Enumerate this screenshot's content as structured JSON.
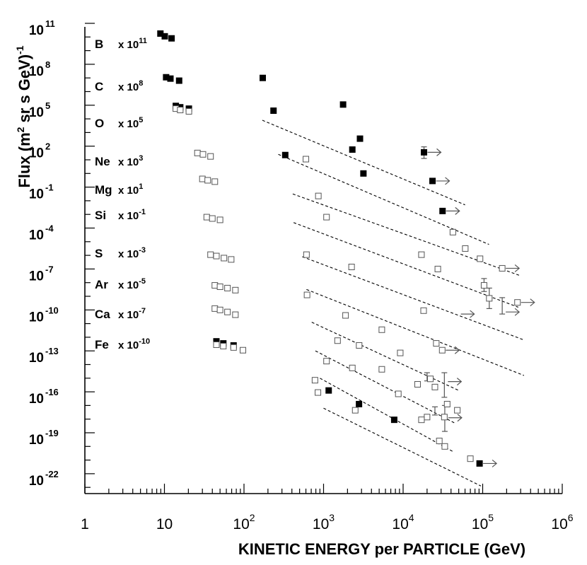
{
  "chart_data": {
    "type": "scatter",
    "title": "",
    "xlabel": "KINETIC ENERGY per PARTICLE (GeV)",
    "ylabel": {
      "base": "Flux (m",
      "sup1": "2",
      "mid": " sr s GeV)",
      "sup2": "-1"
    },
    "x_scale": "log",
    "y_scale": "log",
    "xlim": [
      1,
      1000000
    ],
    "ylim_exponent": [
      -23,
      11
    ],
    "x_ticks": [
      {
        "base": "1",
        "exp": ""
      },
      {
        "base": "10",
        "exp": ""
      },
      {
        "base": "10",
        "exp": "2"
      },
      {
        "base": "10",
        "exp": "3"
      },
      {
        "base": "10",
        "exp": "4"
      },
      {
        "base": "10",
        "exp": "5"
      },
      {
        "base": "10",
        "exp": "6"
      }
    ],
    "y_ticks": [
      {
        "base": "10",
        "exp": "11"
      },
      {
        "base": "10",
        "exp": "8"
      },
      {
        "base": "10",
        "exp": "5"
      },
      {
        "base": "10",
        "exp": "2"
      },
      {
        "base": "10",
        "exp": "-1"
      },
      {
        "base": "10",
        "exp": "-4"
      },
      {
        "base": "10",
        "exp": "-7"
      },
      {
        "base": "10",
        "exp": "-10"
      },
      {
        "base": "10",
        "exp": "-13"
      },
      {
        "base": "10",
        "exp": "-16"
      },
      {
        "base": "10",
        "exp": "-19"
      },
      {
        "base": "10",
        "exp": "-22"
      }
    ],
    "legend_labels": [
      {
        "name": "B",
        "scale": "x 10",
        "exp": "11"
      },
      {
        "name": "C",
        "scale": "x 10",
        "exp": "8"
      },
      {
        "name": "O",
        "scale": "x 10",
        "exp": "5"
      },
      {
        "name": "Ne",
        "scale": "x 10",
        "exp": "3"
      },
      {
        "name": "Mg",
        "scale": "x 10",
        "exp": "1"
      },
      {
        "name": "Si",
        "scale": "x 10",
        "exp": "-1"
      },
      {
        "name": "S",
        "scale": "x 10",
        "exp": "-3"
      },
      {
        "name": "Ar",
        "scale": "x 10",
        "exp": "-5"
      },
      {
        "name": "Ca",
        "scale": "x 10",
        "exp": "-7"
      },
      {
        "name": "Fe",
        "scale": "x 10",
        "exp": "-10"
      }
    ],
    "series": [
      {
        "name": "filled markers",
        "marker": "filled-square",
        "points": [
          [
            8.9,
            10.25
          ],
          [
            10.1,
            10.05
          ],
          [
            12.3,
            9.9
          ],
          [
            10.5,
            7.05
          ],
          [
            11.9,
            6.95
          ],
          [
            15.3,
            6.8
          ],
          [
            13.9,
            4.95
          ],
          [
            15.8,
            4.85
          ],
          [
            20.3,
            4.75
          ],
          [
            172,
            7.0
          ],
          [
            235,
            4.6
          ],
          [
            1760,
            5.05
          ],
          [
            2870,
            2.55
          ],
          [
            3170,
            0.0
          ],
          [
            18300,
            1.55
          ],
          [
            23400,
            -0.55
          ],
          [
            31300,
            -2.75
          ],
          [
            45,
            -12.3
          ],
          [
            55,
            -12.45
          ],
          [
            74,
            -12.6
          ],
          [
            1160,
            -15.9
          ],
          [
            2790,
            -16.9
          ],
          [
            7730,
            -18.05
          ],
          [
            91400,
            -21.25
          ],
          [
            330,
            1.35
          ],
          [
            2300,
            1.75
          ]
        ]
      },
      {
        "name": "open markers",
        "marker": "open-square",
        "points": [
          [
            13.9,
            4.75
          ],
          [
            15.8,
            4.65
          ],
          [
            20.3,
            4.55
          ],
          [
            26,
            1.5
          ],
          [
            30.5,
            1.4
          ],
          [
            38,
            1.25
          ],
          [
            30,
            -0.4
          ],
          [
            35,
            -0.5
          ],
          [
            43,
            -0.6
          ],
          [
            34,
            -3.2
          ],
          [
            40,
            -3.3
          ],
          [
            50,
            -3.4
          ],
          [
            38,
            -5.95
          ],
          [
            45,
            -6.05
          ],
          [
            56,
            -6.2
          ],
          [
            69,
            -6.3
          ],
          [
            43,
            -8.2
          ],
          [
            50,
            -8.3
          ],
          [
            62,
            -8.4
          ],
          [
            78,
            -8.55
          ],
          [
            43,
            -9.9
          ],
          [
            50,
            -10.0
          ],
          [
            62,
            -10.15
          ],
          [
            78,
            -10.35
          ],
          [
            45,
            -12.55
          ],
          [
            55,
            -12.65
          ],
          [
            74,
            -12.75
          ],
          [
            97,
            -12.95
          ],
          [
            600,
            1.05
          ],
          [
            860,
            -1.65
          ],
          [
            1090,
            -3.2
          ],
          [
            610,
            -5.95
          ],
          [
            2250,
            -6.85
          ],
          [
            17000,
            -5.95
          ],
          [
            27300,
            -7.0
          ],
          [
            42200,
            -4.3
          ],
          [
            60400,
            -5.5
          ],
          [
            92600,
            -6.25
          ],
          [
            104000,
            -8.2
          ],
          [
            121000,
            -9.15
          ],
          [
            176000,
            -6.95
          ],
          [
            274000,
            -9.45
          ],
          [
            620,
            -8.9
          ],
          [
            1890,
            -10.4
          ],
          [
            5400,
            -11.45
          ],
          [
            18100,
            -10.05
          ],
          [
            26100,
            -12.45
          ],
          [
            31000,
            -12.95
          ],
          [
            1500,
            -12.25
          ],
          [
            2800,
            -12.6
          ],
          [
            9200,
            -13.15
          ],
          [
            22000,
            -15.05
          ],
          [
            25100,
            -15.65
          ],
          [
            35800,
            -16.9
          ],
          [
            48000,
            -17.35
          ],
          [
            780,
            -15.15
          ],
          [
            1090,
            -13.75
          ],
          [
            2300,
            -14.25
          ],
          [
            5400,
            -14.35
          ],
          [
            15200,
            -15.45
          ],
          [
            20000,
            -17.85
          ],
          [
            33000,
            -17.85
          ],
          [
            850,
            -16.05
          ],
          [
            2500,
            -17.35
          ],
          [
            8700,
            -16.15
          ],
          [
            17000,
            -18.05
          ],
          [
            28500,
            -19.6
          ],
          [
            33400,
            -20.0
          ],
          [
            70000,
            -20.9
          ]
        ]
      }
    ],
    "fits": [
      {
        "from": [
          170,
          3.9
        ],
        "to": [
          60000,
          -2.3
        ]
      },
      {
        "from": [
          270,
          1.4
        ],
        "to": [
          120000,
          -5.2
        ]
      },
      {
        "from": [
          410,
          -1.5
        ],
        "to": [
          300000,
          -7.5
        ]
      },
      {
        "from": [
          420,
          -3.6
        ],
        "to": [
          280000,
          -9.8
        ]
      },
      {
        "from": [
          540,
          -6.1
        ],
        "to": [
          330000,
          -12.2
        ]
      },
      {
        "from": [
          610,
          -8.5
        ],
        "to": [
          330000,
          -14.8
        ]
      },
      {
        "from": [
          710,
          -10.9
        ],
        "to": [
          50000,
          -15.9
        ]
      },
      {
        "from": [
          790,
          -13.0
        ],
        "to": [
          45000,
          -18.3
        ]
      },
      {
        "from": [
          900,
          -15.0
        ],
        "to": [
          43000,
          -20.4
        ]
      },
      {
        "from": [
          1000,
          -17.2
        ],
        "to": [
          95000,
          -22.9
        ]
      }
    ],
    "error_bars": [
      {
        "x": 18300,
        "lo": 1.1,
        "hi": 1.95
      },
      {
        "x": 104000,
        "lo": -8.65,
        "hi": -7.7
      },
      {
        "x": 121000,
        "lo": -9.9,
        "hi": -8.4
      },
      {
        "x": 176000,
        "lo": -10.3,
        "hi": -9.1
      },
      {
        "x": 20000,
        "lo": -15.2,
        "hi": -14.6
      },
      {
        "x": 33000,
        "lo": -16.4,
        "hi": -14.6
      },
      {
        "x": 33400,
        "lo": -18.9,
        "hi": -17.0
      },
      {
        "x": 25100,
        "lo": -17.7,
        "hi": -17.1
      }
    ],
    "arrows": [
      {
        "x": 18300,
        "y": 1.55
      },
      {
        "x": 23400,
        "y": -0.55
      },
      {
        "x": 31300,
        "y": -2.75
      },
      {
        "x": 176000,
        "y": -6.95
      },
      {
        "x": 274000,
        "y": -9.45
      },
      {
        "x": 176000,
        "y": -10.15
      },
      {
        "x": 48000,
        "y": -10.3
      },
      {
        "x": 31000,
        "y": -12.95
      },
      {
        "x": 33000,
        "y": -15.25
      },
      {
        "x": 33400,
        "y": -17.9
      },
      {
        "x": 91400,
        "y": -21.25
      }
    ]
  }
}
